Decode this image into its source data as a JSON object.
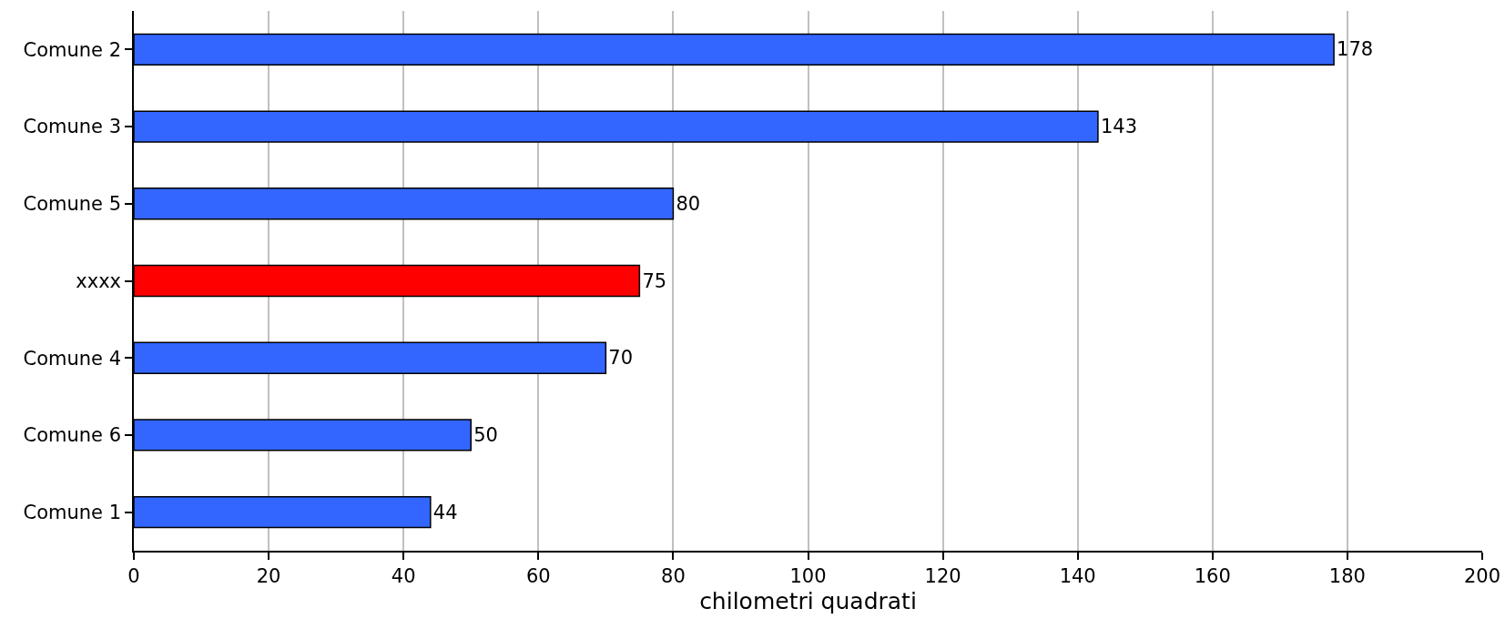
{
  "chart_data": {
    "type": "bar",
    "orientation": "horizontal",
    "xlabel": "chilometri quadrati",
    "categories": [
      "Comune 2",
      "Comune 3",
      "Comune 5",
      "xxxx",
      "Comune 4",
      "Comune 6",
      "Comune 1"
    ],
    "values": [
      178,
      143,
      80,
      75,
      70,
      50,
      44
    ],
    "colors": [
      "#3366ff",
      "#3366ff",
      "#3366ff",
      "#ff0000",
      "#3366ff",
      "#3366ff",
      "#3366ff"
    ],
    "xlim": [
      0,
      200
    ],
    "xticks": [
      0,
      20,
      40,
      60,
      80,
      100,
      120,
      140,
      160,
      180,
      200
    ],
    "grid": "x",
    "data_labels": true
  }
}
